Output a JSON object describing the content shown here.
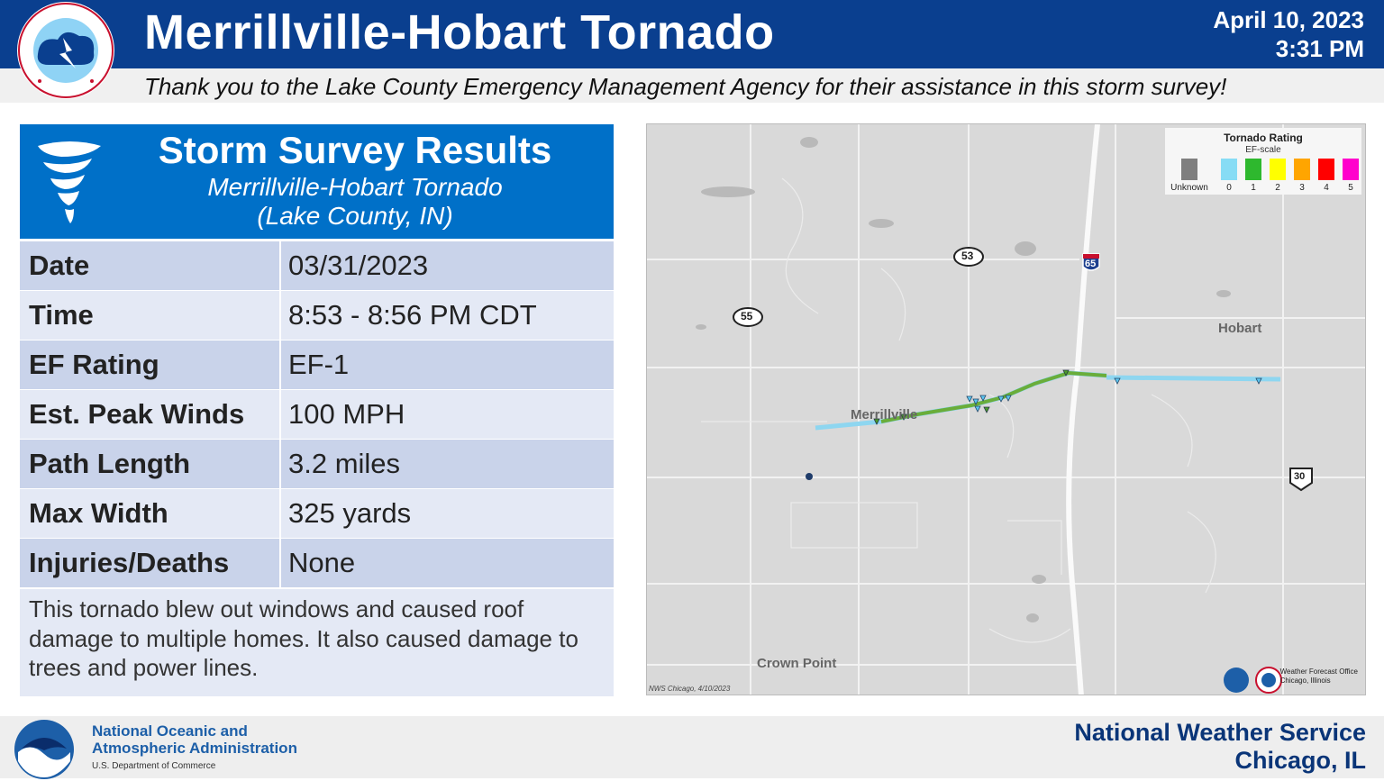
{
  "header": {
    "title": "Merrillville-Hobart Tornado",
    "date": "April 10, 2023",
    "time": "3:31 PM",
    "thanks": "Thank you to the Lake County Emergency Management Agency for their assistance in this storm survey!"
  },
  "panel": {
    "title": "Storm Survey Results",
    "subtitle1": "Merrillville-Hobart Tornado",
    "subtitle2": "(Lake County, IN)",
    "rows": [
      {
        "label": "Date",
        "value": "03/31/2023"
      },
      {
        "label": "Time",
        "value": "8:53 - 8:56 PM CDT"
      },
      {
        "label": "EF Rating",
        "value": "EF-1"
      },
      {
        "label": "Est. Peak Winds",
        "value": "100 MPH"
      },
      {
        "label": "Path Length",
        "value": "3.2 miles"
      },
      {
        "label": "Max Width",
        "value": "325 yards"
      },
      {
        "label": "Injuries/Deaths",
        "value": "None"
      }
    ],
    "description": "This tornado blew out windows and caused roof damage to multiple homes. It also caused damage to trees and power lines."
  },
  "map": {
    "labels": {
      "merrillville": "Merrillville",
      "hobart": "Hobart",
      "crown_point": "Crown Point",
      "route_53": "53",
      "route_55": "55",
      "route_65": "65",
      "route_30": "30"
    },
    "legend": {
      "title": "Tornado Rating",
      "scale": "EF-scale",
      "items": [
        {
          "label": "Unknown",
          "color": "#7f7f7f"
        },
        {
          "label": "0",
          "color": "#87dcf5"
        },
        {
          "label": "1",
          "color": "#2eb82e"
        },
        {
          "label": "2",
          "color": "#ffff00"
        },
        {
          "label": "3",
          "color": "#ffa500"
        },
        {
          "label": "4",
          "color": "#ff0000"
        },
        {
          "label": "5",
          "color": "#ff00cc"
        }
      ]
    },
    "credit": "NWS Chicago, 4/10/2023",
    "wfo_line1": "Weather Forecast Office",
    "wfo_line2": "Chicago, Illinois"
  },
  "footer": {
    "noaa_line1": "National Oceanic and",
    "noaa_line2": "Atmospheric Administration",
    "noaa_dept": "U.S. Department of Commerce",
    "nws_line1": "National Weather Service",
    "nws_line2": "Chicago, IL"
  },
  "colors": {
    "header_blue": "#0a3f8f",
    "panel_blue": "#0070c8",
    "row_dark": "#c9d3ea",
    "row_light": "#e4e9f5"
  }
}
